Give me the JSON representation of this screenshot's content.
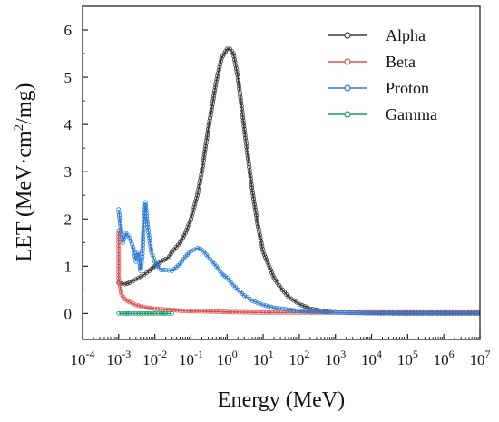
{
  "chart_data": {
    "type": "line",
    "xscale": "log",
    "xlim": [
      0.0001,
      10000000
    ],
    "ylim": [
      -0.55,
      6.5
    ],
    "xlabel": "Energy (MeV)",
    "ylabel_parts": {
      "pre": "LET (MeV·cm",
      "sup": "2",
      "post": "/mg)"
    },
    "xticks": [
      {
        "base": "10",
        "exp": "-4",
        "value": 0.0001
      },
      {
        "base": "10",
        "exp": "-3",
        "value": 0.001
      },
      {
        "base": "10",
        "exp": "-2",
        "value": 0.01
      },
      {
        "base": "10",
        "exp": "-1",
        "value": 0.1
      },
      {
        "base": "10",
        "exp": "0",
        "value": 1
      },
      {
        "base": "10",
        "exp": "1",
        "value": 10
      },
      {
        "base": "10",
        "exp": "2",
        "value": 100
      },
      {
        "base": "10",
        "exp": "3",
        "value": 1000
      },
      {
        "base": "10",
        "exp": "4",
        "value": 10000
      },
      {
        "base": "10",
        "exp": "5",
        "value": 100000
      },
      {
        "base": "10",
        "exp": "6",
        "value": 1000000
      },
      {
        "base": "10",
        "exp": "7",
        "value": 10000000
      }
    ],
    "yticks": [
      {
        "label": "0",
        "value": 0
      },
      {
        "label": "1",
        "value": 1
      },
      {
        "label": "2",
        "value": 2
      },
      {
        "label": "3",
        "value": 3
      },
      {
        "label": "4",
        "value": 4
      },
      {
        "label": "5",
        "value": 5
      },
      {
        "label": "6",
        "value": 6
      }
    ],
    "grid": false,
    "legend_position": "top-right",
    "series": [
      {
        "name": "Alpha",
        "color": "#3a3a3a",
        "marker": "open-circle",
        "x": [
          0.001,
          0.0015,
          0.002,
          0.003,
          0.005,
          0.007,
          0.01,
          0.015,
          0.02,
          0.025,
          0.03,
          0.05,
          0.07,
          0.1,
          0.15,
          0.2,
          0.3,
          0.5,
          0.7,
          1,
          1.2,
          1.5,
          2,
          3,
          5,
          7,
          10,
          20,
          30,
          50,
          100,
          200,
          500,
          1000,
          10000,
          100000,
          1000000,
          10000000
        ],
        "y": [
          0.65,
          0.62,
          0.65,
          0.72,
          0.82,
          0.9,
          1.0,
          1.1,
          1.15,
          1.2,
          1.3,
          1.5,
          1.7,
          2.0,
          2.5,
          3.0,
          3.9,
          4.9,
          5.4,
          5.6,
          5.6,
          5.5,
          5.0,
          3.9,
          2.6,
          1.9,
          1.3,
          0.75,
          0.55,
          0.35,
          0.2,
          0.1,
          0.04,
          0.02,
          0.005,
          0.0,
          0.0,
          0.0
        ]
      },
      {
        "name": "Beta",
        "color": "#e05050",
        "marker": "open-circle",
        "x": [
          0.001,
          0.001,
          0.0012,
          0.0015,
          0.002,
          0.003,
          0.005,
          0.01,
          0.02,
          0.05,
          0.1,
          0.5,
          1,
          10,
          100,
          1000,
          10000,
          100000,
          1000000,
          10000000
        ],
        "y": [
          1.75,
          0.75,
          0.4,
          0.3,
          0.24,
          0.18,
          0.13,
          0.1,
          0.08,
          0.06,
          0.05,
          0.04,
          0.03,
          0.02,
          0.02,
          0.02,
          0.02,
          0.02,
          0.02,
          0.02
        ]
      },
      {
        "name": "Proton",
        "color": "#2f7fd8",
        "marker": "open-circle",
        "x": [
          0.001,
          0.0011,
          0.0013,
          0.0016,
          0.002,
          0.0025,
          0.003,
          0.0035,
          0.004,
          0.0045,
          0.005,
          0.0055,
          0.006,
          0.007,
          0.008,
          0.01,
          0.012,
          0.015,
          0.02,
          0.03,
          0.05,
          0.07,
          0.1,
          0.15,
          0.2,
          0.3,
          0.5,
          0.7,
          1,
          1.5,
          2,
          3,
          5,
          10,
          20,
          50,
          100,
          1000,
          10000,
          100000,
          1000000,
          10000000
        ],
        "y": [
          2.2,
          1.9,
          1.5,
          1.7,
          1.6,
          1.4,
          1.1,
          1.3,
          0.9,
          1.2,
          2.0,
          2.35,
          2.0,
          1.6,
          1.3,
          1.1,
          1.0,
          0.92,
          0.92,
          0.9,
          1.05,
          1.2,
          1.32,
          1.38,
          1.35,
          1.2,
          1.0,
          0.85,
          0.75,
          0.6,
          0.5,
          0.38,
          0.27,
          0.18,
          0.12,
          0.08,
          0.05,
          0.02,
          0.01,
          0.01,
          0.01,
          0.01
        ]
      },
      {
        "name": "Gamma",
        "color": "#1a9a6a",
        "marker": "open-circle",
        "x": [
          0.001,
          0.0015,
          0.002,
          0.003,
          0.005,
          0.007,
          0.01,
          0.015,
          0.02,
          0.03
        ],
        "y": [
          0.0,
          0.0,
          0.0,
          0.0,
          0.0,
          0.0,
          0.0,
          0.0,
          0.0,
          0.0
        ]
      }
    ]
  }
}
